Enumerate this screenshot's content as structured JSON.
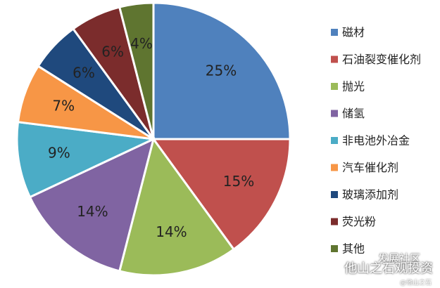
{
  "chart_data": {
    "type": "pie",
    "categories": [
      "磁材",
      "石油裂变催化剂",
      "抛光",
      "储氢",
      "非电池外冶金",
      "汽车催化剂",
      "玻璃添加剂",
      "荧光粉",
      "其他"
    ],
    "values": [
      25,
      15,
      14,
      14,
      9,
      7,
      6,
      6,
      4
    ],
    "value_labels": [
      "25%",
      "15%",
      "14%",
      "14%",
      "9%",
      "7%",
      "6%",
      "6%",
      "4%"
    ],
    "colors": [
      "#4f81bd",
      "#c0504d",
      "#9bbb59",
      "#8064a2",
      "#4bacc6",
      "#f79646",
      "#1f497d",
      "#7b2c2c",
      "#5f7530"
    ],
    "start_angle_deg": 0,
    "direction": "clockwise",
    "legend_position": "right",
    "title": ""
  },
  "watermark": {
    "badge": "发展社区",
    "main": "他山之石观投资",
    "sub": "@他山之石"
  }
}
